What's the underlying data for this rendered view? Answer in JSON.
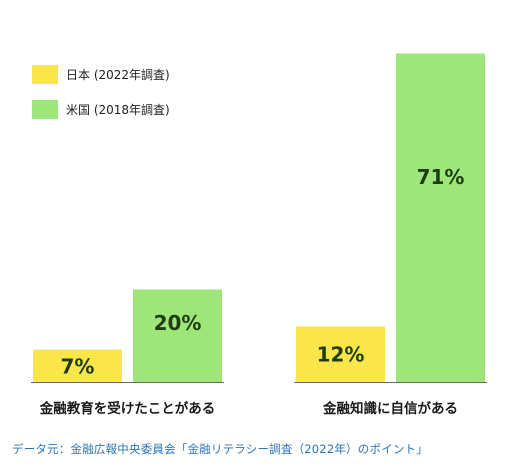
{
  "chart_data": {
    "type": "bar",
    "categories": [
      "金融教育を受けたことがある",
      "金融知識に自信がある"
    ],
    "series": [
      {
        "name": "日本 (2022年調査)",
        "values": [
          7,
          12
        ],
        "color": "#fbe64a",
        "labels": [
          "7%",
          "12%"
        ]
      },
      {
        "name": "米国 (2018年調査)",
        "values": [
          20,
          71
        ],
        "color": "#9ee67a",
        "labels": [
          "20%",
          "71%"
        ]
      }
    ],
    "ylim": [
      0,
      75
    ],
    "grid": false,
    "legend": "top-left",
    "label_color": "#1e3d12"
  },
  "source": "データ元：金融広報中央委員会「金融リテラシー調査（2022年）のポイント」"
}
